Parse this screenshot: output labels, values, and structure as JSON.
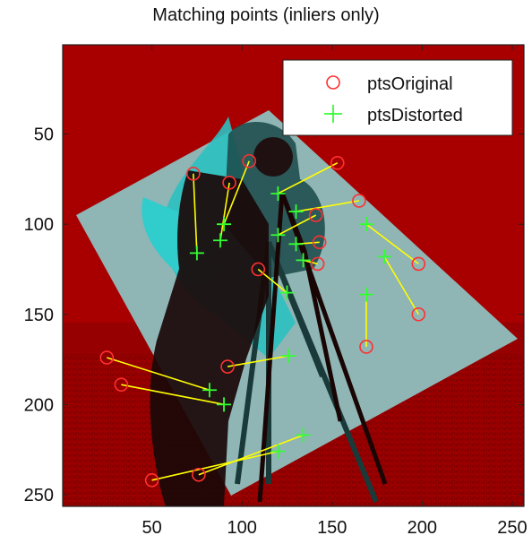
{
  "figure": {
    "title": "Matching points (inliers only)"
  },
  "legend": {
    "items": [
      {
        "label": "ptsOriginal",
        "marker": "circle",
        "color": "#ff3030"
      },
      {
        "label": "ptsDistorted",
        "marker": "plus",
        "color": "#33ff33"
      }
    ]
  },
  "colors": {
    "original_tint": "#aa0000",
    "distorted_tint": "#28b8b8",
    "match_line": "#ffff00",
    "original_marker": "#ff3030",
    "distorted_marker": "#33ff33",
    "axis_text": "#111111"
  },
  "chart_data": {
    "type": "scatter",
    "title": "Matching points (inliers only)",
    "xlabel": "",
    "ylabel": "",
    "xlim": [
      0.5,
      256.5
    ],
    "ylim": [
      0.5,
      256.5
    ],
    "y_reversed": true,
    "xticks": [
      50,
      100,
      150,
      200,
      250
    ],
    "yticks": [
      50,
      100,
      150,
      200,
      250
    ],
    "legend_position": "top-right",
    "grid": false,
    "background": "red-cyan overlay of original (red) and distorted (cyan) cameraman images",
    "series": [
      {
        "name": "ptsOriginal",
        "marker": "circle"
      },
      {
        "name": "ptsDistorted",
        "marker": "plus"
      }
    ],
    "matches": [
      {
        "original": [
          73,
          72
        ],
        "distorted": [
          75,
          116
        ]
      },
      {
        "original": [
          93,
          77
        ],
        "distorted": [
          88,
          109
        ]
      },
      {
        "original": [
          104,
          65
        ],
        "distorted": [
          90,
          100
        ]
      },
      {
        "original": [
          153,
          66
        ],
        "distorted": [
          120,
          83
        ]
      },
      {
        "original": [
          141,
          95
        ],
        "distorted": [
          120,
          106
        ]
      },
      {
        "original": [
          165,
          87
        ],
        "distorted": [
          130,
          93
        ]
      },
      {
        "original": [
          143,
          110
        ],
        "distorted": [
          130,
          111
        ]
      },
      {
        "original": [
          142,
          122
        ],
        "distorted": [
          134,
          120
        ]
      },
      {
        "original": [
          198,
          122
        ],
        "distorted": [
          169,
          100
        ]
      },
      {
        "original": [
          198,
          150
        ],
        "distorted": [
          179,
          118
        ]
      },
      {
        "original": [
          169,
          168
        ],
        "distorted": [
          169,
          139
        ]
      },
      {
        "original": [
          92,
          179
        ],
        "distorted": [
          126,
          173
        ]
      },
      {
        "original": [
          25,
          174
        ],
        "distorted": [
          82,
          192
        ]
      },
      {
        "original": [
          33,
          189
        ],
        "distorted": [
          90,
          200
        ]
      },
      {
        "original": [
          50,
          242
        ],
        "distorted": [
          120,
          226
        ]
      },
      {
        "original": [
          76,
          239
        ],
        "distorted": [
          134,
          217
        ]
      },
      {
        "original": [
          109,
          125
        ],
        "distorted": [
          125,
          138
        ]
      }
    ]
  }
}
